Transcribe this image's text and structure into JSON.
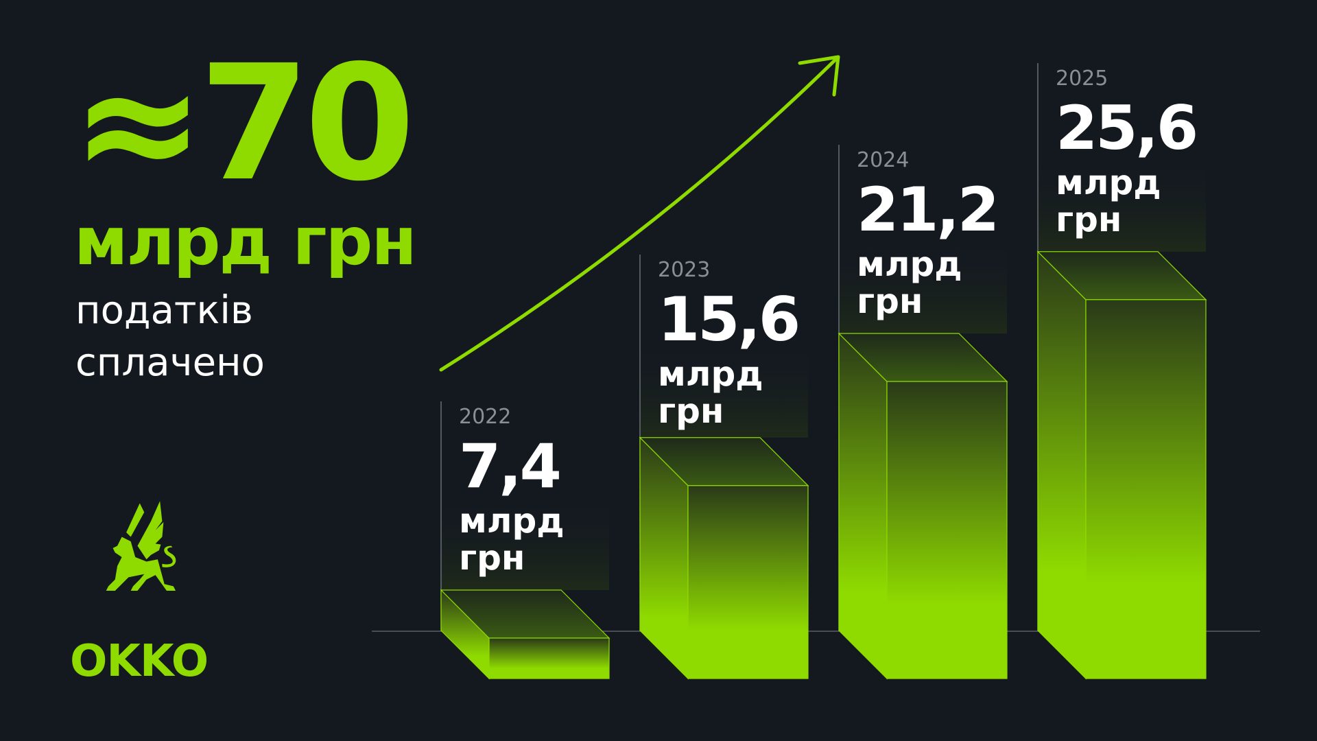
{
  "headline": {
    "value": "≈70",
    "unit": "млрд грн",
    "line1": "податків",
    "line2": "сплачено"
  },
  "logo": {
    "text": "OKKO",
    "icon": "griffin-logo-icon"
  },
  "colors": {
    "background": "#141920",
    "accent": "#8fdb00",
    "year_text": "#8a8f95"
  },
  "chart_data": {
    "type": "bar",
    "style": "3d-gradient",
    "categories": [
      "2022",
      "2023",
      "2024",
      "2025"
    ],
    "values": [
      7.4,
      15.6,
      21.2,
      25.6
    ],
    "value_labels": [
      "7,4",
      "15,6",
      "21,2",
      "25,6"
    ],
    "unit_label": [
      "млрд",
      "грн"
    ],
    "trend_arrow": true,
    "grid": false
  }
}
